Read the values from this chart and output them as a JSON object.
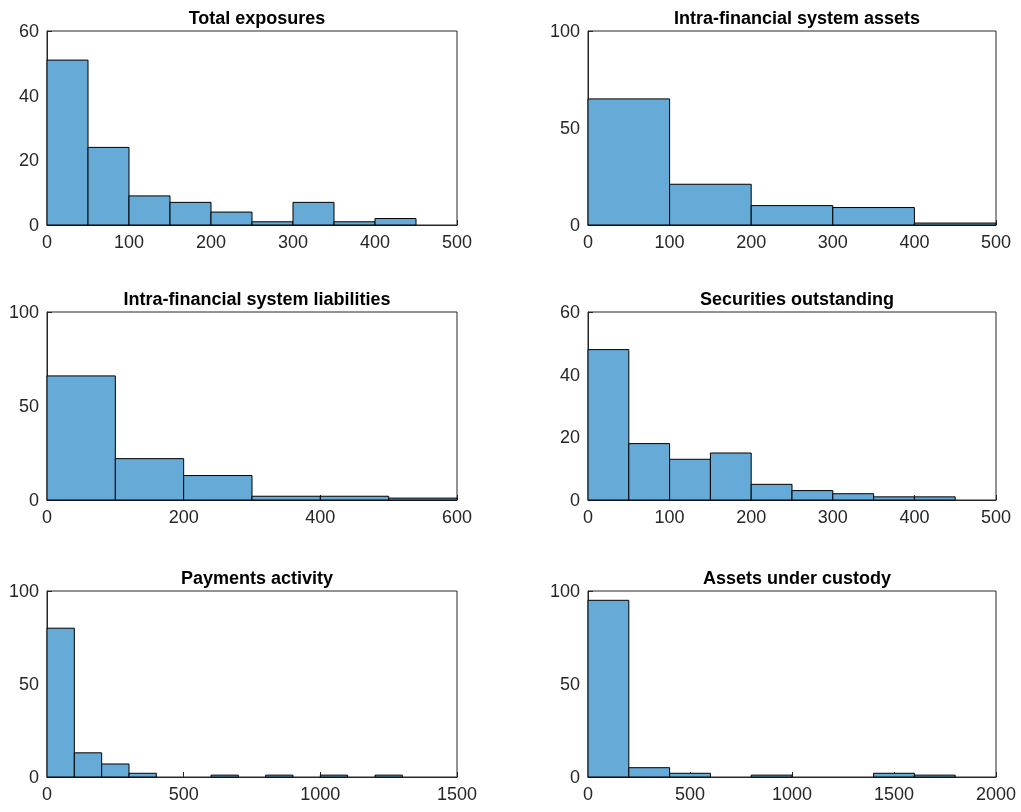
{
  "chart_data": [
    {
      "type": "histogram",
      "title": "Total exposures",
      "bins": [
        0,
        50,
        100,
        150,
        200,
        250,
        300,
        350,
        400,
        450
      ],
      "values": [
        51,
        24,
        9,
        7,
        4,
        1,
        7,
        1,
        2
      ],
      "color": "#66aad8",
      "xlim": [
        0,
        500
      ],
      "xticks": [
        0,
        100,
        200,
        300,
        400,
        500
      ],
      "ylim": [
        0,
        60
      ],
      "yticks": [
        0,
        20,
        40,
        60
      ]
    },
    {
      "type": "histogram",
      "title": "Intra-financial system assets",
      "bins": [
        0,
        100,
        200,
        300,
        400,
        500
      ],
      "values": [
        65,
        21,
        10,
        9,
        1
      ],
      "color": "#66aad8",
      "xlim": [
        0,
        500
      ],
      "xticks": [
        0,
        100,
        200,
        300,
        400,
        500
      ],
      "ylim": [
        0,
        100
      ],
      "yticks": [
        0,
        50,
        100
      ]
    },
    {
      "type": "histogram",
      "title": "Intra-financial system liabilities",
      "bins": [
        0,
        100,
        200,
        300,
        400,
        500,
        600
      ],
      "values": [
        66,
        22,
        13,
        2,
        2,
        1
      ],
      "color": "#66aad8",
      "xlim": [
        0,
        600
      ],
      "xticks": [
        0,
        200,
        400,
        600
      ],
      "ylim": [
        0,
        100
      ],
      "yticks": [
        0,
        50,
        100
      ]
    },
    {
      "type": "histogram",
      "title": "Securities outstanding",
      "bins": [
        0,
        50,
        100,
        150,
        200,
        250,
        300,
        350,
        400,
        450
      ],
      "values": [
        48,
        18,
        13,
        15,
        5,
        3,
        2,
        1,
        1
      ],
      "color": "#66aad8",
      "xlim": [
        0,
        500
      ],
      "xticks": [
        0,
        100,
        200,
        300,
        400,
        500
      ],
      "ylim": [
        0,
        60
      ],
      "yticks": [
        0,
        20,
        40,
        60
      ]
    },
    {
      "type": "histogram",
      "title": "Payments activity",
      "bins": [
        0,
        100,
        200,
        300,
        400,
        500,
        600,
        700,
        800,
        900,
        1000,
        1100,
        1200,
        1300
      ],
      "values": [
        80,
        13,
        7,
        2,
        0,
        0,
        1,
        0,
        1,
        0,
        1,
        0,
        1
      ],
      "color": "#66aad8",
      "xlim": [
        0,
        1500
      ],
      "xticks": [
        0,
        500,
        1000,
        1500
      ],
      "ylim": [
        0,
        100
      ],
      "yticks": [
        0,
        50,
        100
      ]
    },
    {
      "type": "histogram",
      "title": "Assets under custody",
      "bins": [
        0,
        200,
        400,
        600,
        800,
        1000,
        1200,
        1400,
        1600,
        1800
      ],
      "values": [
        95,
        5,
        2,
        0,
        1,
        0,
        0,
        2,
        1
      ],
      "color": "#66aad8",
      "xlim": [
        0,
        2000
      ],
      "xticks": [
        0,
        500,
        1000,
        1500,
        2000
      ],
      "ylim": [
        0,
        100
      ],
      "yticks": [
        0,
        50,
        100
      ]
    }
  ]
}
